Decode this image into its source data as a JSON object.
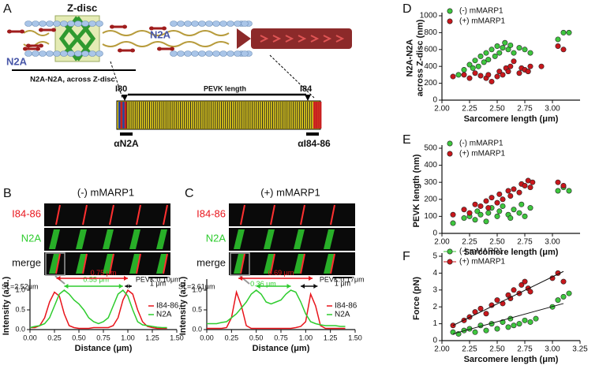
{
  "panels": [
    "A",
    "B",
    "C",
    "D",
    "E",
    "F"
  ],
  "schematic": {
    "z_disc": "Z-disc",
    "n2a_left": "N2A",
    "n2a_right": "N2A",
    "n2a_span": "N2A-N2A, across Z-disc",
    "i80": "I80",
    "pevk_length": "PEVK length",
    "i84": "I84",
    "an2a": "αN2A",
    "ai84": "αI84-86"
  },
  "images": [
    {
      "title": "(-) mMARP1",
      "rows": [
        "I84-86",
        "N2A",
        "merge"
      ],
      "scale": "1 μm"
    },
    {
      "title": "(+) mMARP1",
      "rows": [
        "I84-86",
        "N2A",
        "merge"
      ],
      "scale": "1 μm"
    }
  ],
  "chart_data": [
    {
      "type": "line",
      "xlabel": "Distance (μm)",
      "ylabel": [
        "Intensity (a.u.)"
      ],
      "legend": "right",
      "annotations": [
        "SL=2.52μm",
        "0.75 μm",
        "0.55 μm",
        "PEVK:0.10μm"
      ],
      "x": [
        0,
        0.05,
        0.1,
        0.15,
        0.2,
        0.25,
        0.3,
        0.35,
        0.4,
        0.45,
        0.5,
        0.55,
        0.6,
        0.65,
        0.7,
        0.75,
        0.8,
        0.85,
        0.9,
        0.95,
        1.0,
        1.05,
        1.1,
        1.15,
        1.2,
        1.25,
        1.3,
        1.35,
        1.4
      ],
      "series": [
        {
          "name": "I84-86",
          "color": "#e8141b",
          "values": [
            0.05,
            0.05,
            0.1,
            0.3,
            0.7,
            0.95,
            0.85,
            0.4,
            0.1,
            0.05,
            0.03,
            0.03,
            0.03,
            0.05,
            0.05,
            0.05,
            0.05,
            0.1,
            0.3,
            0.75,
            1.0,
            0.9,
            0.5,
            0.2,
            0.08,
            0.05,
            0.03,
            0.03,
            0.03
          ]
        },
        {
          "name": "N2A",
          "color": "#2ecc2e",
          "values": [
            0.05,
            0.08,
            0.1,
            0.15,
            0.3,
            0.6,
            0.9,
            1.0,
            0.9,
            0.75,
            0.65,
            0.5,
            0.3,
            0.2,
            0.15,
            0.2,
            0.3,
            0.6,
            0.9,
            1.0,
            0.85,
            0.5,
            0.2,
            0.12,
            0.1,
            0.08,
            0.06,
            0.05,
            0.05
          ]
        }
      ],
      "xlim": [
        0,
        1.5
      ],
      "ylim": [
        0,
        1.2
      ],
      "xticks": [
        {
          "value": 0,
          "label": "0.00"
        },
        {
          "value": 0.25,
          "label": "0.25"
        },
        {
          "value": 0.5,
          "label": "0.50"
        },
        {
          "value": 0.75,
          "label": "0.75"
        },
        {
          "value": 1,
          "label": "1.00"
        },
        {
          "value": 1.25,
          "label": "1.25"
        },
        {
          "value": 1.5,
          "label": "1.50"
        }
      ],
      "yticks": [
        {
          "value": 0,
          "label": "0.0"
        },
        {
          "value": 0.5,
          "label": "0.5"
        },
        {
          "value": 1,
          "label": "1.0"
        }
      ]
    },
    {
      "type": "line",
      "xlabel": "Distance (μm)",
      "ylabel": [
        "Intensity (a.u.)"
      ],
      "legend": "right",
      "annotations": [
        "SL=2.61μm",
        "0.69 μm",
        "0.36 μm",
        "PEVK:0.17μm"
      ],
      "x": [
        0,
        0.05,
        0.1,
        0.15,
        0.2,
        0.25,
        0.3,
        0.35,
        0.4,
        0.45,
        0.5,
        0.55,
        0.6,
        0.65,
        0.7,
        0.75,
        0.8,
        0.85,
        0.9,
        0.95,
        1.0,
        1.05,
        1.1,
        1.15,
        1.2,
        1.25,
        1.3,
        1.35,
        1.4
      ],
      "series": [
        {
          "name": "I84-86",
          "color": "#e8141b",
          "values": [
            0.03,
            0.03,
            0.03,
            0.03,
            0.05,
            0.3,
            0.95,
            0.6,
            0.1,
            0.03,
            0.03,
            0.03,
            0.03,
            0.03,
            0.03,
            0.03,
            0.03,
            0.03,
            0.05,
            0.08,
            0.2,
            0.9,
            0.6,
            0.1,
            0.03,
            0.03,
            0.03,
            0.03,
            0.03
          ]
        },
        {
          "name": "N2A",
          "color": "#2ecc2e",
          "values": [
            0.15,
            0.15,
            0.15,
            0.18,
            0.2,
            0.3,
            0.4,
            0.55,
            0.7,
            0.9,
            1.0,
            0.9,
            0.7,
            0.65,
            0.7,
            0.75,
            0.9,
            1.0,
            0.95,
            0.7,
            0.4,
            0.2,
            0.15,
            0.12,
            0.1,
            0.1,
            0.1,
            0.08,
            0.08
          ]
        }
      ],
      "xlim": [
        0,
        1.5
      ],
      "ylim": [
        0,
        1.2
      ],
      "xticks": [
        {
          "value": 0,
          "label": "0.00"
        },
        {
          "value": 0.25,
          "label": "0.25"
        },
        {
          "value": 0.5,
          "label": "0.50"
        },
        {
          "value": 0.75,
          "label": "0.75"
        },
        {
          "value": 1,
          "label": "1.00"
        },
        {
          "value": 1.25,
          "label": "1.25"
        },
        {
          "value": 1.5,
          "label": "1.50"
        }
      ],
      "yticks": [
        {
          "value": 0,
          "label": "0.0"
        },
        {
          "value": 0.5,
          "label": "0.5"
        },
        {
          "value": 1,
          "label": "1.0"
        }
      ]
    },
    {
      "type": "scatter",
      "xlabel": "Sarcomere length (μm)",
      "ylabel": [
        "N2A-N2A",
        "across Z-disc (nm)"
      ],
      "legend": "upper left",
      "series": [
        {
          "name": "(-) mMARP1",
          "color": "#3ec63e",
          "x": [
            2.15,
            2.2,
            2.25,
            2.28,
            2.3,
            2.33,
            2.35,
            2.38,
            2.4,
            2.42,
            2.45,
            2.48,
            2.5,
            2.52,
            2.55,
            2.57,
            2.6,
            2.62,
            2.65,
            2.7,
            2.75,
            2.8,
            3.05,
            3.1,
            3.15
          ],
          "values": [
            300,
            360,
            420,
            380,
            470,
            400,
            520,
            450,
            560,
            480,
            600,
            520,
            640,
            560,
            620,
            680,
            600,
            650,
            560,
            620,
            600,
            560,
            720,
            800,
            800
          ]
        },
        {
          "name": "(+) mMARP1",
          "color": "#c8171c",
          "x": [
            2.1,
            2.2,
            2.25,
            2.3,
            2.35,
            2.4,
            2.42,
            2.45,
            2.5,
            2.52,
            2.55,
            2.58,
            2.6,
            2.62,
            2.65,
            2.7,
            2.72,
            2.75,
            2.78,
            2.8,
            2.9,
            3.05,
            3.1
          ],
          "values": [
            280,
            300,
            260,
            320,
            290,
            260,
            300,
            220,
            280,
            340,
            300,
            380,
            340,
            400,
            460,
            320,
            380,
            360,
            340,
            400,
            400,
            640,
            600
          ]
        }
      ],
      "xlim": [
        2.0,
        3.25
      ],
      "ylim": [
        0,
        1000
      ],
      "xticks": [
        {
          "value": 2,
          "label": "2.00"
        },
        {
          "value": 2.25,
          "label": "2.25"
        },
        {
          "value": 2.5,
          "label": "2.50"
        },
        {
          "value": 2.75,
          "label": "2.75"
        },
        {
          "value": 3,
          "label": "3.00"
        }
      ],
      "yticks": [
        0,
        200,
        400,
        600,
        800,
        1000
      ]
    },
    {
      "type": "scatter",
      "xlabel": "Sarcomere length (μm)",
      "ylabel": [
        "PEVK length (nm)"
      ],
      "legend": "upper left",
      "series": [
        {
          "name": "(-) mMARP1",
          "color": "#3ec63e",
          "x": [
            2.1,
            2.2,
            2.25,
            2.3,
            2.32,
            2.35,
            2.4,
            2.42,
            2.45,
            2.5,
            2.52,
            2.55,
            2.6,
            2.62,
            2.65,
            2.7,
            2.72,
            2.75,
            2.8,
            3.05,
            3.1,
            3.15
          ],
          "values": [
            60,
            90,
            100,
            80,
            130,
            110,
            70,
            120,
            150,
            100,
            130,
            160,
            110,
            90,
            140,
            120,
            170,
            100,
            150,
            250,
            270,
            250
          ]
        },
        {
          "name": "(+) mMARP1",
          "color": "#c8171c",
          "x": [
            2.1,
            2.2,
            2.25,
            2.3,
            2.35,
            2.4,
            2.42,
            2.45,
            2.5,
            2.52,
            2.55,
            2.6,
            2.62,
            2.65,
            2.7,
            2.72,
            2.75,
            2.78,
            2.8,
            2.82,
            3.05,
            3.1
          ],
          "values": [
            110,
            140,
            120,
            170,
            160,
            190,
            150,
            210,
            180,
            230,
            200,
            250,
            220,
            260,
            240,
            290,
            280,
            310,
            270,
            300,
            300,
            280
          ]
        }
      ],
      "xlim": [
        2.0,
        3.25
      ],
      "ylim": [
        0,
        500
      ],
      "xticks": [
        {
          "value": 2,
          "label": "2.00"
        },
        {
          "value": 2.25,
          "label": "2.25"
        },
        {
          "value": 2.5,
          "label": "2.50"
        },
        {
          "value": 2.75,
          "label": "2.75"
        },
        {
          "value": 3,
          "label": "3.00"
        }
      ],
      "yticks": [
        0,
        100,
        200,
        300,
        400,
        500
      ]
    },
    {
      "type": "scatter",
      "xlabel": "Sarcomere length (μm)",
      "ylabel": [
        "Force (pN)"
      ],
      "legend": "upper left",
      "series": [
        {
          "name": "(-) mMARP1",
          "color": "#3ec63e",
          "x": [
            2.1,
            2.15,
            2.2,
            2.25,
            2.3,
            2.35,
            2.4,
            2.45,
            2.5,
            2.55,
            2.6,
            2.62,
            2.65,
            2.7,
            2.75,
            2.8,
            2.85,
            3.0,
            3.05,
            3.1,
            3.15
          ],
          "values": [
            0.5,
            0.4,
            0.6,
            0.7,
            0.5,
            0.9,
            0.6,
            1.0,
            0.7,
            1.1,
            0.8,
            1.3,
            0.9,
            1.0,
            1.2,
            1.1,
            1.3,
            2.0,
            2.4,
            2.6,
            2.8
          ],
          "fit": {
            "x": [
              2.1,
              3.1
            ],
            "values": [
              0.4,
              2.2
            ]
          }
        },
        {
          "name": "(+) mMARP1",
          "color": "#c8171c",
          "x": [
            2.1,
            2.2,
            2.25,
            2.3,
            2.35,
            2.4,
            2.45,
            2.5,
            2.55,
            2.6,
            2.62,
            2.65,
            2.7,
            2.72,
            2.75,
            2.78,
            2.8,
            3.0,
            3.05,
            3.1
          ],
          "values": [
            0.9,
            1.2,
            1.4,
            1.7,
            1.9,
            1.6,
            2.1,
            2.4,
            2.2,
            2.7,
            2.5,
            3.0,
            2.8,
            3.3,
            3.5,
            3.1,
            2.9,
            3.7,
            4.0,
            3.5
          ],
          "fit": {
            "x": [
              2.1,
              3.1
            ],
            "values": [
              0.9,
              4.1
            ]
          }
        }
      ],
      "xlim": [
        2.0,
        3.25
      ],
      "ylim": [
        0,
        5
      ],
      "xticks": [
        {
          "value": 2,
          "label": "2.00"
        },
        {
          "value": 2.25,
          "label": "2.25"
        },
        {
          "value": 2.5,
          "label": "2.50"
        },
        {
          "value": 2.75,
          "label": "2.75"
        },
        {
          "value": 3,
          "label": "3.00"
        },
        {
          "value": 3.25,
          "label": "3.25"
        }
      ],
      "yticks": [
        0,
        1,
        2,
        3,
        4,
        5
      ]
    }
  ]
}
